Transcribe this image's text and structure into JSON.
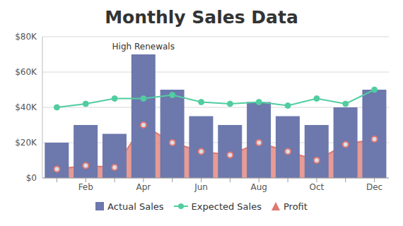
{
  "chart_data": {
    "type": "combo",
    "title": "Monthly Sales Data",
    "categories": [
      null,
      "Feb",
      null,
      "Apr",
      null,
      "Jun",
      null,
      "Aug",
      null,
      "Oct",
      null,
      "Dec"
    ],
    "series": [
      {
        "name": "Actual Sales",
        "type": "bar",
        "color": "#6d78ad",
        "values": [
          20000,
          30000,
          25000,
          70000,
          50000,
          35000,
          30000,
          43000,
          35000,
          30000,
          40000,
          50000
        ]
      },
      {
        "name": "Expected Sales",
        "type": "line",
        "color": "#51cda0",
        "marker": "circle",
        "values": [
          40000,
          42000,
          45000,
          45000,
          47000,
          43000,
          42000,
          43000,
          41000,
          45000,
          42000,
          50000
        ]
      },
      {
        "name": "Profit",
        "type": "area",
        "color": "#df7970",
        "marker": "circle",
        "values": [
          5000,
          7000,
          6000,
          30000,
          20000,
          15000,
          13000,
          20000,
          15000,
          10000,
          19000,
          22000
        ]
      }
    ],
    "annotations": [
      {
        "x": "Apr",
        "series": "Actual Sales",
        "text": "High Renewals"
      }
    ],
    "ylim": [
      0,
      80000
    ],
    "yticks": [
      {
        "value": 0,
        "label": "$0"
      },
      {
        "value": 20000,
        "label": "$20K"
      },
      {
        "value": 40000,
        "label": "$40K"
      },
      {
        "value": 60000,
        "label": "$60K"
      },
      {
        "value": 80000,
        "label": "$80K"
      }
    ],
    "grid": true,
    "legend": "bottom"
  }
}
